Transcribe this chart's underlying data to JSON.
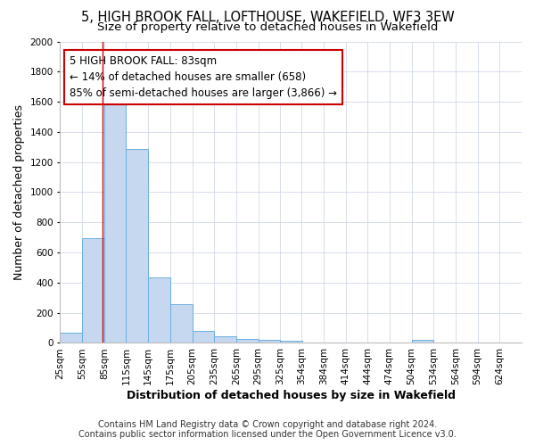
{
  "title": "5, HIGH BROOK FALL, LOFTHOUSE, WAKEFIELD, WF3 3EW",
  "subtitle": "Size of property relative to detached houses in Wakefield",
  "xlabel": "Distribution of detached houses by size in Wakefield",
  "ylabel": "Number of detached properties",
  "footnote1": "Contains HM Land Registry data © Crown copyright and database right 2024.",
  "footnote2": "Contains public sector information licensed under the Open Government Licence v3.0.",
  "bin_labels": [
    "25sqm",
    "55sqm",
    "85sqm",
    "115sqm",
    "145sqm",
    "175sqm",
    "205sqm",
    "235sqm",
    "265sqm",
    "295sqm",
    "325sqm",
    "354sqm",
    "384sqm",
    "414sqm",
    "444sqm",
    "474sqm",
    "504sqm",
    "534sqm",
    "564sqm",
    "594sqm",
    "624sqm"
  ],
  "bin_left_edges": [
    25,
    55,
    85,
    115,
    145,
    175,
    205,
    235,
    265,
    295,
    325,
    354,
    384,
    414,
    444,
    474,
    504,
    534,
    564,
    594,
    624
  ],
  "bin_width": 30,
  "bar_values": [
    65,
    695,
    1635,
    1285,
    435,
    255,
    80,
    47,
    28,
    22,
    12,
    5,
    0,
    0,
    0,
    0,
    20,
    0,
    0,
    0,
    0
  ],
  "bar_color": "#c5d8f0",
  "bar_edge_color": "#6aaee0",
  "property_size": 83,
  "property_line_color": "#cc0000",
  "annotation_text": "5 HIGH BROOK FALL: 83sqm\n← 14% of detached houses are smaller (658)\n85% of semi-detached houses are larger (3,866) →",
  "annotation_box_color": "#cc0000",
  "ylim": [
    0,
    2000
  ],
  "yticks": [
    0,
    200,
    400,
    600,
    800,
    1000,
    1200,
    1400,
    1600,
    1800,
    2000
  ],
  "xlim_left": 25,
  "xlim_right": 654,
  "grid_color": "#d0d8e8",
  "background_color": "#ffffff",
  "title_fontsize": 10.5,
  "subtitle_fontsize": 9.5,
  "axis_label_fontsize": 9,
  "tick_fontsize": 7.5,
  "annotation_fontsize": 8.5,
  "footnote_fontsize": 7
}
